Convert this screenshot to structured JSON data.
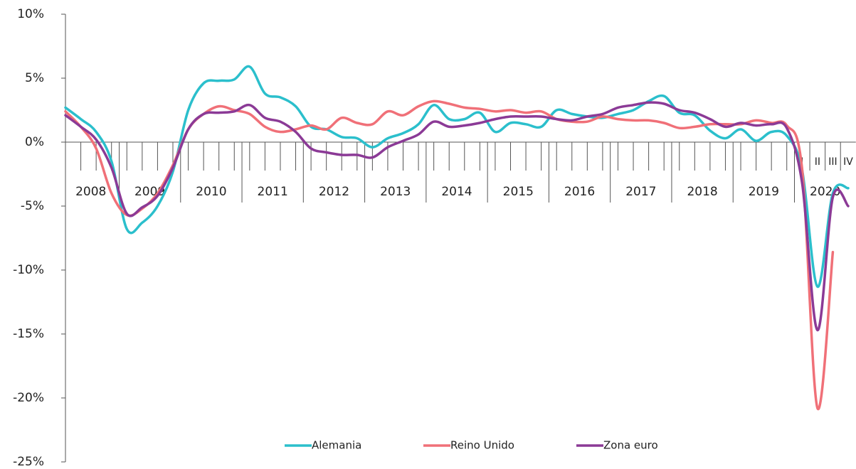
{
  "chart_data": {
    "type": "line",
    "years": [
      2008,
      2009,
      2010,
      2011,
      2012,
      2013,
      2014,
      2015,
      2016,
      2017,
      2018,
      2019,
      2020
    ],
    "quarter_labels": [
      "I",
      "II",
      "III",
      "IV"
    ],
    "ylim": [
      -25,
      10
    ],
    "yticks": [
      {
        "value": 10,
        "label": "10%"
      },
      {
        "value": 5,
        "label": "5%"
      },
      {
        "value": 0,
        "label": "0%"
      },
      {
        "value": -5,
        "label": "-5%"
      },
      {
        "value": -10,
        "label": "-10%"
      },
      {
        "value": -15,
        "label": "-15%"
      },
      {
        "value": -20,
        "label": "-20%"
      },
      {
        "value": -25,
        "label": "-25%"
      }
    ],
    "legend": "bottom",
    "series": [
      {
        "name": "Alemania",
        "color": "#2bbfcc",
        "values": [
          2.7,
          1.8,
          0.8,
          -1.5,
          -6.8,
          -6.3,
          -5.0,
          -2.3,
          2.5,
          4.6,
          4.8,
          4.9,
          5.9,
          3.8,
          3.5,
          2.8,
          1.2,
          1.0,
          0.4,
          0.3,
          -0.4,
          0.3,
          0.7,
          1.4,
          2.9,
          1.8,
          1.8,
          2.3,
          0.8,
          1.5,
          1.4,
          1.2,
          2.5,
          2.2,
          2.0,
          1.9,
          2.2,
          2.5,
          3.2,
          3.6,
          2.3,
          2.1,
          0.9,
          0.3,
          1.0,
          0.1,
          0.8,
          0.5,
          -2.2,
          -11.3,
          -4.0,
          -3.6
        ]
      },
      {
        "name": "Reino Unido",
        "color": "#f07078",
        "values": [
          2.4,
          1.2,
          -0.5,
          -4.0,
          -5.7,
          -5.2,
          -4.0,
          -1.8,
          1.0,
          2.2,
          2.8,
          2.5,
          2.2,
          1.2,
          0.8,
          1.0,
          1.3,
          1.0,
          1.9,
          1.5,
          1.4,
          2.4,
          2.1,
          2.8,
          3.2,
          3.0,
          2.7,
          2.6,
          2.4,
          2.5,
          2.3,
          2.4,
          1.8,
          1.6,
          1.6,
          2.0,
          1.8,
          1.7,
          1.7,
          1.5,
          1.1,
          1.2,
          1.4,
          1.4,
          1.4,
          1.7,
          1.5,
          1.3,
          -2.1,
          -20.8,
          -8.6,
          null
        ]
      },
      {
        "name": "Zona euro",
        "color": "#8b3a96",
        "values": [
          2.1,
          1.2,
          0.2,
          -2.0,
          -5.6,
          -5.1,
          -4.2,
          -2.0,
          1.0,
          2.2,
          2.3,
          2.4,
          2.9,
          1.9,
          1.6,
          0.8,
          -0.5,
          -0.8,
          -1.0,
          -1.0,
          -1.2,
          -0.4,
          0.1,
          0.6,
          1.6,
          1.2,
          1.3,
          1.5,
          1.8,
          2.0,
          2.0,
          2.0,
          1.8,
          1.7,
          2.0,
          2.2,
          2.7,
          2.9,
          3.1,
          3.0,
          2.5,
          2.3,
          1.8,
          1.2,
          1.5,
          1.3,
          1.4,
          1.1,
          -3.2,
          -14.7,
          -4.3,
          -5.0
        ]
      }
    ]
  }
}
